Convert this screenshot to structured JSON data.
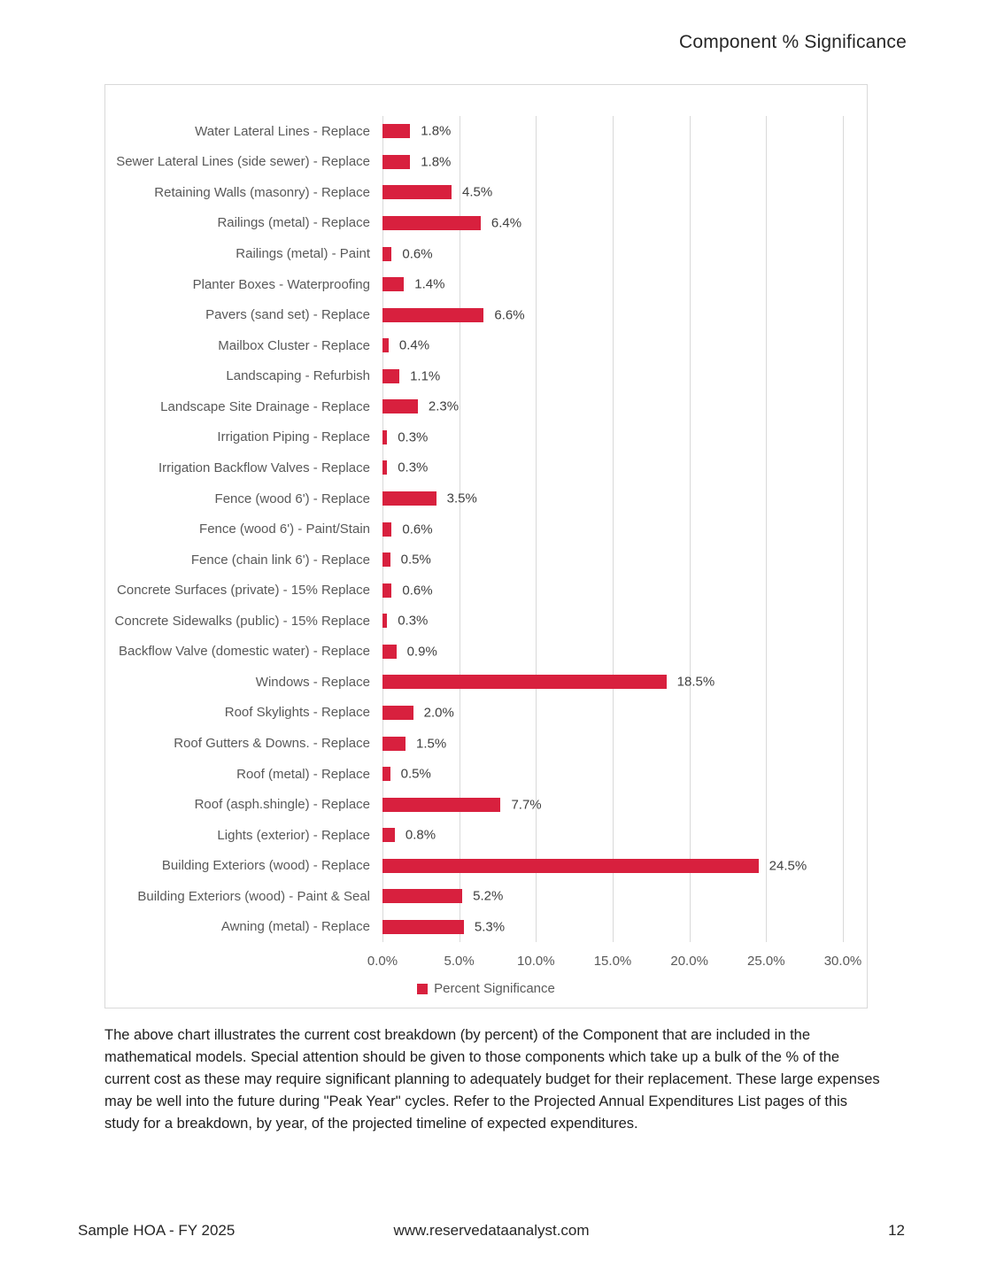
{
  "title": "Component % Significance",
  "chart_data": {
    "type": "bar",
    "orientation": "horizontal",
    "title": "Component % Significance",
    "legend": "Percent Significance",
    "legend_position": "bottom-center",
    "bar_color": "#d8203e",
    "gridline_color": "#d9d9d9",
    "x_axis": {
      "min": 0,
      "max": 30,
      "ticks": [
        "0.0%",
        "5.0%",
        "10.0%",
        "15.0%",
        "20.0%",
        "25.0%",
        "30.0%"
      ],
      "grid": true
    },
    "categories": [
      "Water Lateral Lines - Replace",
      "Sewer Lateral Lines (side sewer) - Replace",
      "Retaining Walls (masonry) - Replace",
      "Railings (metal) - Replace",
      "Railings (metal) - Paint",
      "Planter Boxes - Waterproofing",
      "Pavers (sand set) - Replace",
      "Mailbox Cluster - Replace",
      "Landscaping - Refurbish",
      "Landscape Site Drainage - Replace",
      "Irrigation Piping - Replace",
      "Irrigation Backflow Valves - Replace",
      "Fence (wood 6') - Replace",
      "Fence (wood 6') - Paint/Stain",
      "Fence (chain link 6') - Replace",
      "Concrete Surfaces (private) - 15% Replace",
      "Concrete Sidewalks (public) - 15% Replace",
      "Backflow Valve (domestic water) - Replace",
      "Windows - Replace",
      "Roof Skylights - Replace",
      "Roof Gutters & Downs. - Replace",
      "Roof (metal) - Replace",
      "Roof (asph.shingle) - Replace",
      "Lights (exterior) - Replace",
      "Building Exteriors (wood) - Replace",
      "Building Exteriors (wood) - Paint & Seal",
      "Awning (metal) - Replace"
    ],
    "values": [
      1.8,
      1.8,
      4.5,
      6.4,
      0.6,
      1.4,
      6.6,
      0.4,
      1.1,
      2.3,
      0.3,
      0.3,
      3.5,
      0.6,
      0.5,
      0.6,
      0.3,
      0.9,
      18.5,
      2.0,
      1.5,
      0.5,
      7.7,
      0.8,
      24.5,
      5.2,
      5.3
    ],
    "value_labels": [
      "1.8%",
      "1.8%",
      "4.5%",
      "6.4%",
      "0.6%",
      "1.4%",
      "6.6%",
      "0.4%",
      "1.1%",
      "2.3%",
      "0.3%",
      "0.3%",
      "3.5%",
      "0.6%",
      "0.5%",
      "0.6%",
      "0.3%",
      "0.9%",
      "18.5%",
      "2.0%",
      "1.5%",
      "0.5%",
      "7.7%",
      "0.8%",
      "24.5%",
      "5.2%",
      "5.3%"
    ]
  },
  "description": "The above chart illustrates the current cost breakdown (by percent) of the Component that are included in the mathematical models.  Special attention should be given to those components which take up a bulk of the % of the current cost as these may require significant planning to adequately budget for their replacement. These large expenses may be well into the future during \"Peak Year\" cycles. Refer to the Projected Annual Expenditures List pages of this study for a breakdown, by year, of the projected timeline of expected expenditures.",
  "footer": {
    "left": "Sample HOA - FY 2025",
    "center": "www.reservedataanalyst.com",
    "page_number": "12"
  }
}
